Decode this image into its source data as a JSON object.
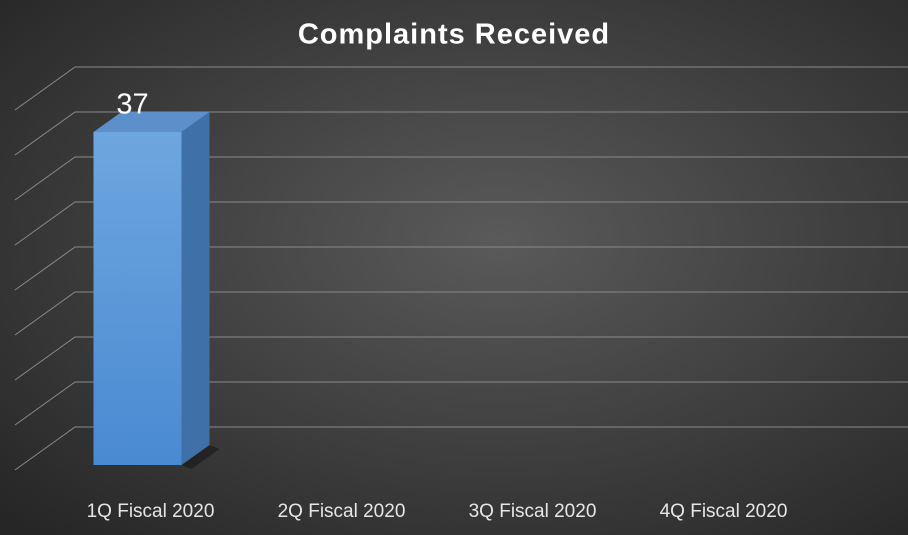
{
  "chart_data": {
    "type": "bar3d",
    "title": "Complaints Received",
    "categories": [
      "1Q Fiscal 2020",
      "2Q Fiscal 2020",
      "3Q Fiscal 2020",
      "4Q Fiscal 2020"
    ],
    "values": [
      37,
      null,
      null,
      null
    ],
    "color": "#5b9bd5",
    "ylim": [
      0,
      40
    ],
    "yticks": [
      0,
      5,
      10,
      15,
      20,
      25,
      30,
      35,
      40
    ],
    "grid": true
  }
}
